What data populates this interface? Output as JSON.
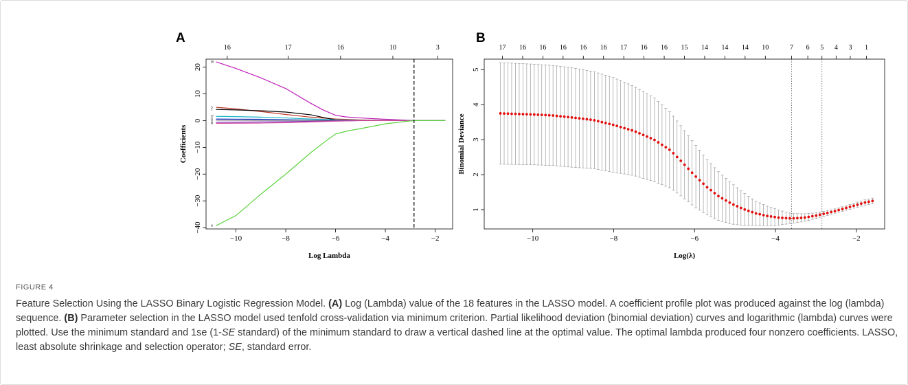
{
  "panels": {
    "a_label": "A",
    "b_label": "B"
  },
  "chart_data": [
    {
      "type": "line",
      "panel": "A",
      "xlabel": "Log Lambda",
      "ylabel": "Coefficients",
      "xlim": [
        -11.2,
        -1.3
      ],
      "ylim": [
        -40.5,
        23
      ],
      "x_ticks": [
        -10,
        -8,
        -6,
        -4,
        -2
      ],
      "y_ticks": [
        -40,
        -30,
        -20,
        -10,
        0,
        10,
        20
      ],
      "top_axis": {
        "positions": [
          -10.35,
          -7.9,
          -5.8,
          -3.7,
          -1.9
        ],
        "labels": [
          "16",
          "17",
          "16",
          "10",
          "3"
        ]
      },
      "vline": -2.85,
      "series": [
        {
          "label": "18",
          "color": "#c01fb8",
          "points": [
            [
              -10.8,
              22
            ],
            [
              -10,
              19.5
            ],
            [
              -9,
              16
            ],
            [
              -8,
              12
            ],
            [
              -7,
              6.5
            ],
            [
              -6.5,
              4
            ],
            [
              -6,
              2
            ],
            [
              -5.6,
              1.4
            ],
            [
              -5,
              1
            ],
            [
              -4,
              0.5
            ],
            [
              -3,
              0.1
            ],
            [
              -2.85,
              0
            ],
            [
              -1.6,
              0
            ]
          ]
        },
        {
          "label": "5",
          "color": "#c0392b",
          "points": [
            [
              -10.8,
              5
            ],
            [
              -10,
              4.4
            ],
            [
              -9,
              3.4
            ],
            [
              -8,
              2.3
            ],
            [
              -7,
              1.3
            ],
            [
              -6,
              0.6
            ],
            [
              -5,
              0.25
            ],
            [
              -4,
              0.1
            ],
            [
              -2.85,
              0
            ],
            [
              -1.6,
              0
            ]
          ]
        },
        {
          "label": "1",
          "color": "#000000",
          "points": [
            [
              -10.8,
              4.2
            ],
            [
              -10,
              4.0
            ],
            [
              -9,
              3.7
            ],
            [
              -8,
              3.2
            ],
            [
              -7,
              2.2
            ],
            [
              -6.5,
              1.2
            ],
            [
              -6,
              0.3
            ],
            [
              -5.5,
              0
            ],
            [
              -1.6,
              0
            ]
          ]
        },
        {
          "label": "17",
          "color": "#17b6c8",
          "points": [
            [
              -10.8,
              1.6
            ],
            [
              -10,
              1.5
            ],
            [
              -9,
              1.3
            ],
            [
              -8,
              1.0
            ],
            [
              -7,
              0.6
            ],
            [
              -6,
              0.3
            ],
            [
              -5,
              0.1
            ],
            [
              -4,
              0
            ],
            [
              -1.6,
              0
            ]
          ]
        },
        {
          "label": "2",
          "color": "#1f3fd6",
          "points": [
            [
              -10.8,
              0.6
            ],
            [
              -10,
              0.55
            ],
            [
              -9,
              0.5
            ],
            [
              -8,
              0.35
            ],
            [
              -7,
              0.2
            ],
            [
              -6,
              0.05
            ],
            [
              -5,
              0
            ],
            [
              -1.6,
              0
            ]
          ]
        },
        {
          "label": "3",
          "color": "#666666",
          "points": [
            [
              -10.8,
              0.2
            ],
            [
              -9,
              0.15
            ],
            [
              -7,
              0.1
            ],
            [
              -6,
              0
            ],
            [
              -1.6,
              0
            ]
          ]
        },
        {
          "label": "4",
          "color": "#7d2fbf",
          "points": [
            [
              -10.8,
              -0.6
            ],
            [
              -9,
              -0.5
            ],
            [
              -8,
              -0.4
            ],
            [
              -7,
              -0.25
            ],
            [
              -6,
              -0.1
            ],
            [
              -5,
              0
            ],
            [
              -1.6,
              0
            ]
          ]
        },
        {
          "label": "6",
          "color": "#d4499c",
          "points": [
            [
              -10.8,
              -1.0
            ],
            [
              -9,
              -0.9
            ],
            [
              -8,
              -0.75
            ],
            [
              -7,
              -0.5
            ],
            [
              -6,
              -0.2
            ],
            [
              -5,
              0
            ],
            [
              -1.6,
              0
            ]
          ]
        },
        {
          "label": "9",
          "color": "#5ad23c",
          "points": [
            [
              -10.8,
              -39.3
            ],
            [
              -10,
              -35.5
            ],
            [
              -9,
              -27.5
            ],
            [
              -8,
              -20
            ],
            [
              -7,
              -12
            ],
            [
              -6.3,
              -7
            ],
            [
              -6,
              -5
            ],
            [
              -5.5,
              -3.8
            ],
            [
              -5,
              -3
            ],
            [
              -4,
              -1.2
            ],
            [
              -3.2,
              -0.3
            ],
            [
              -2.85,
              0
            ],
            [
              -1.6,
              0
            ]
          ]
        }
      ]
    },
    {
      "type": "scatter",
      "panel": "B",
      "xlabel": "Log(λ)",
      "ylabel": "Binomial Deviance",
      "xlim": [
        -11.2,
        -1.3
      ],
      "ylim": [
        0.45,
        5.3
      ],
      "x_ticks": [
        -10,
        -8,
        -6,
        -4,
        -2
      ],
      "y_ticks": [
        1,
        2,
        3,
        4,
        5
      ],
      "top_axis": {
        "positions": [
          -10.75,
          -10.25,
          -9.75,
          -9.25,
          -8.75,
          -8.25,
          -7.75,
          -7.25,
          -6.75,
          -6.25,
          -5.75,
          -5.25,
          -4.75,
          -4.25,
          -3.6,
          -3.2,
          -2.85,
          -2.5,
          -2.15,
          -1.75
        ],
        "labels": [
          "17",
          "16",
          "16",
          "16",
          "16",
          "16",
          "17",
          "16",
          "16",
          "15",
          "14",
          "14",
          "14",
          "10",
          "7",
          "6",
          "5",
          "4",
          "3",
          "1"
        ]
      },
      "vlines": [
        -3.6,
        -2.85
      ],
      "curve": {
        "x_range": [
          -10.8,
          -1.6
        ],
        "count": 100,
        "mean": [
          [
            -10.8,
            3.75
          ],
          [
            -10,
            3.72
          ],
          [
            -9.5,
            3.69
          ],
          [
            -9,
            3.63
          ],
          [
            -8.5,
            3.56
          ],
          [
            -8,
            3.42
          ],
          [
            -7.5,
            3.25
          ],
          [
            -7,
            3.0
          ],
          [
            -6.6,
            2.7
          ],
          [
            -6.3,
            2.35
          ],
          [
            -6,
            1.98
          ],
          [
            -5.7,
            1.65
          ],
          [
            -5.4,
            1.38
          ],
          [
            -5.1,
            1.18
          ],
          [
            -4.8,
            1.02
          ],
          [
            -4.5,
            0.9
          ],
          [
            -4.2,
            0.82
          ],
          [
            -3.9,
            0.77
          ],
          [
            -3.6,
            0.75
          ],
          [
            -3.3,
            0.77
          ],
          [
            -3,
            0.83
          ],
          [
            -2.7,
            0.91
          ],
          [
            -2.4,
            1.0
          ],
          [
            -2.1,
            1.1
          ],
          [
            -1.8,
            1.2
          ],
          [
            -1.6,
            1.25
          ]
        ],
        "half_width": [
          [
            -10.8,
            1.45
          ],
          [
            -9,
            1.42
          ],
          [
            -8,
            1.35
          ],
          [
            -7,
            1.2
          ],
          [
            -6,
            0.9
          ],
          [
            -5,
            0.55
          ],
          [
            -4.5,
            0.35
          ],
          [
            -3.6,
            0.14
          ],
          [
            -3,
            0.08
          ],
          [
            -2.5,
            0.06
          ],
          [
            -1.6,
            0.08
          ]
        ]
      }
    }
  ],
  "caption": {
    "label": "FIGURE 4",
    "p1": "Feature Selection Using the LASSO Binary Logistic Regression Model. ",
    "a_tag": "(A)",
    "p2": " Log (Lambda) value of the 18 features in the LASSO model. A coefficient profile plot was produced against the log (lambda) sequence. ",
    "b_tag": "(B)",
    "p3": " Parameter selection in the LASSO model used tenfold cross-validation via minimum criterion. Partial likelihood deviation (binomial deviation) curves and logarithmic (lambda) curves were plotted. Use the minimum standard and 1se (1-",
    "se_italic1": "SE",
    "p4": " standard) of the minimum standard to draw a vertical dashed line at the optimal value. The optimal lambda produced four nonzero coefficients. LASSO, least absolute shrinkage and selection operator; ",
    "se_italic2": "SE",
    "p5": ", standard error."
  }
}
